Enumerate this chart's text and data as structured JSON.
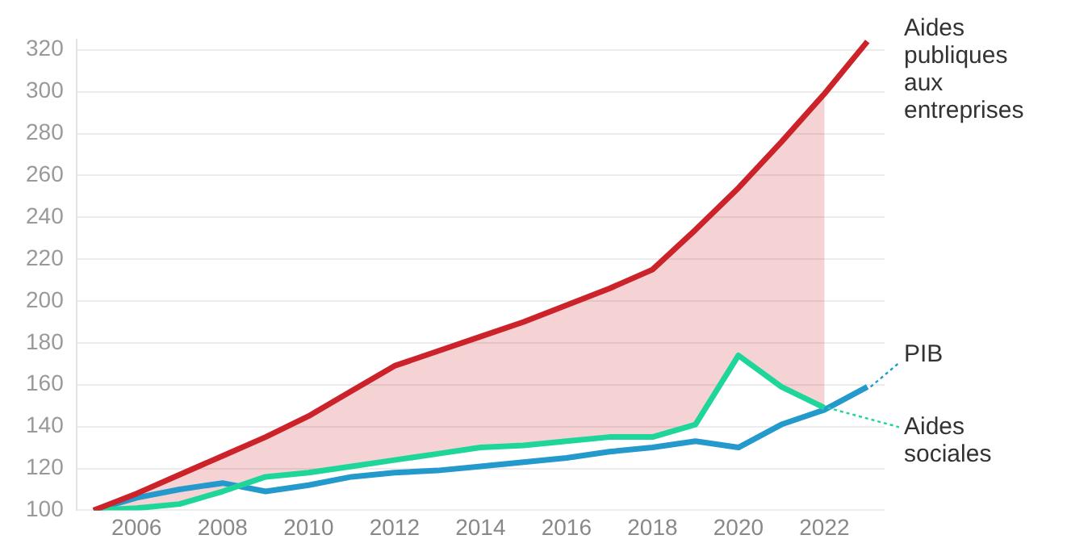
{
  "chart_data": {
    "type": "line",
    "x": [
      2005,
      2006,
      2007,
      2008,
      2009,
      2010,
      2011,
      2012,
      2013,
      2014,
      2015,
      2016,
      2017,
      2018,
      2019,
      2020,
      2021,
      2022,
      2023
    ],
    "series": [
      {
        "name": "Aides publiques aux entreprises",
        "color": "#cc2229",
        "values": [
          100,
          108,
          117,
          126,
          135,
          145,
          157,
          169,
          176,
          183,
          190,
          198,
          206,
          215,
          234,
          254,
          276,
          299,
          324
        ],
        "lower": [
          100,
          101,
          103,
          109,
          116,
          118,
          121,
          124,
          127,
          130,
          131,
          133,
          135,
          135,
          141,
          174,
          159,
          149,
          null
        ],
        "upper": [
          100,
          108,
          117,
          126,
          135,
          145,
          157,
          169,
          176,
          183,
          190,
          198,
          206,
          215,
          234,
          254,
          276,
          299,
          null
        ]
      },
      {
        "name": "Aides sociales",
        "color": "#1fd69a",
        "values": [
          100,
          101,
          103,
          109,
          116,
          118,
          121,
          124,
          127,
          130,
          131,
          133,
          135,
          135,
          141,
          174,
          159,
          149,
          null
        ]
      },
      {
        "name": "PIB",
        "color": "#2399cc",
        "values": [
          100,
          106,
          110,
          113,
          109,
          112,
          116,
          118,
          119,
          121,
          123,
          125,
          128,
          130,
          133,
          130,
          141,
          148,
          159
        ]
      }
    ],
    "xlim": [
      2004.6,
      2023.4
    ],
    "xticks": [
      2006,
      2008,
      2010,
      2012,
      2014,
      2016,
      2018,
      2020,
      2022
    ],
    "ylim": [
      100,
      325
    ],
    "yticks": [
      100,
      120,
      140,
      160,
      180,
      200,
      220,
      240,
      260,
      280,
      300,
      320
    ],
    "grid": "y",
    "legend": "right",
    "marker": "none",
    "line_style": "solid"
  }
}
